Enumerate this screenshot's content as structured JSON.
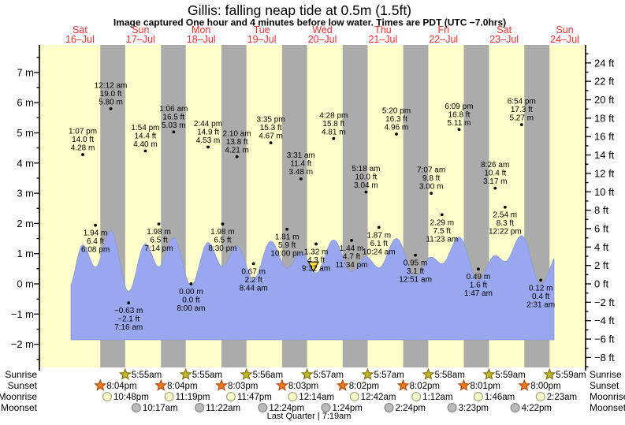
{
  "title": "Gillis: falling  neap tide at 0.5m (1.5ft)",
  "subtitle": "Image captured One hour and 4 minutes before low water. Times are PDT (UTC −7.0hrs)",
  "days": [
    {
      "name": "Sat",
      "date": "16–Jul"
    },
    {
      "name": "Sun",
      "date": "17–Jul"
    },
    {
      "name": "Mon",
      "date": "18–Jul"
    },
    {
      "name": "Tue",
      "date": "19–Jul"
    },
    {
      "name": "Wed",
      "date": "20–Jul"
    },
    {
      "name": "Thu",
      "date": "21–Jul"
    },
    {
      "name": "Fri",
      "date": "22–Jul"
    },
    {
      "name": "Sat",
      "date": "23–Jul"
    },
    {
      "name": "Sun",
      "date": "24–Jul"
    }
  ],
  "chart_data": {
    "type": "area",
    "title": "Gillis: falling  neap tide at 0.5m (1.5ft)",
    "ylabel_left_unit": "m",
    "ylabel_right_unit": "ft",
    "y_ticks_m": [
      7,
      6,
      5,
      4,
      3,
      2,
      1,
      0,
      -1,
      -2
    ],
    "y_ticks_ft": [
      24,
      22,
      20,
      18,
      16,
      14,
      12,
      10,
      8,
      6,
      4,
      2,
      0,
      -2,
      -4,
      -6,
      -8
    ],
    "tide_events": [
      {
        "day": 0,
        "type": "high",
        "time": "1:07 pm",
        "ft": 14.0,
        "m": 4.28
      },
      {
        "day": 0,
        "type": "low",
        "time": "6:08 pm",
        "ft": 6.4,
        "m": 1.94
      },
      {
        "day": 1,
        "type": "high",
        "time": "12:12 am",
        "ft": 19.0,
        "m": 5.8
      },
      {
        "day": 1,
        "type": "low",
        "time": "7:16 am",
        "ft": -2.1,
        "m": -0.63
      },
      {
        "day": 1,
        "type": "high",
        "time": "1:54 pm",
        "ft": 14.4,
        "m": 4.4
      },
      {
        "day": 1,
        "type": "low",
        "time": "7:14 pm",
        "ft": 6.5,
        "m": 1.98
      },
      {
        "day": 2,
        "type": "high",
        "time": "1:06 am",
        "ft": 16.5,
        "m": 5.03
      },
      {
        "day": 2,
        "type": "low",
        "time": "8:00 am",
        "ft": 0.0,
        "m": 0.0
      },
      {
        "day": 2,
        "type": "high",
        "time": "2:44 pm",
        "ft": 14.9,
        "m": 4.53
      },
      {
        "day": 2,
        "type": "low",
        "time": "8:30 pm",
        "ft": 6.5,
        "m": 1.98
      },
      {
        "day": 3,
        "type": "high",
        "time": "2:10 am",
        "ft": 13.8,
        "m": 4.21
      },
      {
        "day": 3,
        "type": "low",
        "time": "8:44 am",
        "ft": 2.2,
        "m": 0.67
      },
      {
        "day": 3,
        "type": "high",
        "time": "3:35 pm",
        "ft": 15.3,
        "m": 4.67
      },
      {
        "day": 3,
        "type": "low",
        "time": "10:00 pm",
        "ft": 5.9,
        "m": 1.81
      },
      {
        "day": 4,
        "type": "high",
        "time": "3:31 am",
        "ft": 11.4,
        "m": 3.48
      },
      {
        "day": 4,
        "type": "low",
        "time": "9:32 am",
        "ft": 4.3,
        "m": 1.32
      },
      {
        "day": 4,
        "type": "high",
        "time": "4:28 pm",
        "ft": 15.8,
        "m": 4.81
      },
      {
        "day": 4,
        "type": "low",
        "time": "11:34 pm",
        "ft": 4.7,
        "m": 1.44
      },
      {
        "day": 5,
        "type": "high",
        "time": "5:18 am",
        "ft": 10.0,
        "m": 3.04
      },
      {
        "day": 5,
        "type": "low",
        "time": "10:24 am",
        "ft": 6.1,
        "m": 1.87
      },
      {
        "day": 5,
        "type": "high",
        "time": "5:20 pm",
        "ft": 16.3,
        "m": 4.96
      },
      {
        "day": 6,
        "type": "low",
        "time": "12:51 am",
        "ft": 3.1,
        "m": 0.95
      },
      {
        "day": 6,
        "type": "high",
        "time": "7:07 am",
        "ft": 9.8,
        "m": 3.0
      },
      {
        "day": 6,
        "type": "low",
        "time": "11:23 am",
        "ft": 7.5,
        "m": 2.29
      },
      {
        "day": 6,
        "type": "high",
        "time": "6:09 pm",
        "ft": 16.8,
        "m": 5.11
      },
      {
        "day": 7,
        "type": "low",
        "time": "1:47 am",
        "ft": 1.6,
        "m": 0.49
      },
      {
        "day": 7,
        "type": "high",
        "time": "8:26 am",
        "ft": 10.4,
        "m": 3.17
      },
      {
        "day": 7,
        "type": "low",
        "time": "12:22 pm",
        "ft": 8.3,
        "m": 2.54
      },
      {
        "day": 7,
        "type": "high",
        "time": "6:54 pm",
        "ft": 17.3,
        "m": 5.27
      },
      {
        "day": 8,
        "type": "low",
        "time": "2:31 am",
        "ft": 0.4,
        "m": 0.12
      }
    ],
    "current_marker": {
      "day": 4,
      "time": "8:28 am"
    }
  },
  "astro": {
    "row_labels": [
      "Sunrise",
      "Sunset",
      "Moonrise",
      "Moonset"
    ],
    "sunrise": [
      {
        "day": 1,
        "time": "5:55am"
      },
      {
        "day": 2,
        "time": "5:55am"
      },
      {
        "day": 3,
        "time": "5:56am"
      },
      {
        "day": 4,
        "time": "5:57am"
      },
      {
        "day": 5,
        "time": "5:57am"
      },
      {
        "day": 6,
        "time": "5:58am"
      },
      {
        "day": 7,
        "time": "5:59am"
      },
      {
        "day": 8,
        "time": "5:59am"
      }
    ],
    "sunset": [
      {
        "day": 0,
        "time": "8:04pm"
      },
      {
        "day": 1,
        "time": "8:04pm"
      },
      {
        "day": 2,
        "time": "8:03pm"
      },
      {
        "day": 3,
        "time": "8:03pm"
      },
      {
        "day": 4,
        "time": "8:02pm"
      },
      {
        "day": 5,
        "time": "8:02pm"
      },
      {
        "day": 6,
        "time": "8:01pm"
      },
      {
        "day": 7,
        "time": "8:00pm"
      }
    ],
    "moonrise": [
      {
        "day": 0,
        "time": "10:48pm"
      },
      {
        "day": 1,
        "time": "11:19pm"
      },
      {
        "day": 2,
        "time": "11:47pm"
      },
      {
        "day": 4,
        "time": "12:14am"
      },
      {
        "day": 5,
        "time": "12:42am"
      },
      {
        "day": 6,
        "time": "1:12am"
      },
      {
        "day": 7,
        "time": "1:46am"
      },
      {
        "day": 8,
        "time": "2:23am"
      }
    ],
    "moonset": [
      {
        "day": 1,
        "time": "10:17am"
      },
      {
        "day": 2,
        "time": "11:22am"
      },
      {
        "day": 3,
        "time": "12:24pm"
      },
      {
        "day": 4,
        "time": "1:24pm"
      },
      {
        "day": 5,
        "time": "2:24pm"
      },
      {
        "day": 6,
        "time": "3:23pm"
      },
      {
        "day": 7,
        "time": "4:22pm"
      }
    ],
    "moon_phase": "Last Quarter | 7:19am"
  },
  "colors": {
    "day_band": "#FFFFCB",
    "night_band": "#ABABAB",
    "tide_fill": "#99A8EE",
    "tide_edge": "#8898E0",
    "day_label": "#F53232",
    "sunrise_star_fill": "#C8B92C",
    "sunrise_star_stroke": "#80750E",
    "sunset_star_fill": "#E97D1E",
    "sunset_star_stroke": "#BC4A0B",
    "moonrise_fill": "#FFFFCC",
    "moonrise_stroke": "#A8A880",
    "moonset_fill": "#BBBBBB",
    "moonset_stroke": "#848484",
    "marker_fill": "#FFE135",
    "marker_stroke": "#2A2A00",
    "text": "#000000"
  }
}
